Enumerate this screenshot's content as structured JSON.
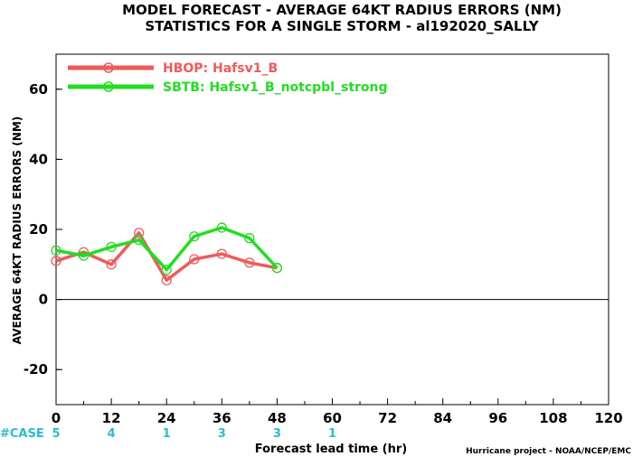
{
  "chart_data": {
    "type": "line",
    "title": "MODEL FORECAST - AVERAGE 64KT RADIUS ERRORS (NM)",
    "subtitle": "STATISTICS FOR A SINGLE STORM - al192020_SALLY",
    "xlabel": "Forecast lead time (hr)",
    "ylabel": "AVERAGE 64KT RADIUS ERRORS (NM)",
    "xlim": [
      0,
      120
    ],
    "ylim": [
      -30,
      70
    ],
    "xticks": [
      0,
      12,
      24,
      36,
      48,
      60,
      72,
      84,
      96,
      108,
      120
    ],
    "yticks": [
      -20,
      0,
      20,
      40,
      60
    ],
    "x": [
      0,
      6,
      12,
      18,
      24,
      30,
      36,
      42,
      48
    ],
    "series": [
      {
        "name": "HBOP: Hafsv1_B",
        "color": "#f05a5a",
        "values": [
          11,
          13.5,
          10,
          19,
          5.5,
          11.5,
          13,
          10.5,
          9
        ]
      },
      {
        "name": "SBTB: Hafsv1_B_notcpbl_strong",
        "color": "#22dd22",
        "values": [
          14,
          12.5,
          15,
          17,
          8.5,
          18,
          20.5,
          17.5,
          9
        ]
      }
    ],
    "cases": {
      "label": "#CASE",
      "hours": [
        0,
        12,
        24,
        36,
        48,
        60
      ],
      "counts": [
        "5",
        "4",
        "1",
        "3",
        "3",
        "1"
      ]
    },
    "legend_position": "top-left",
    "grid": false
  },
  "credit": "Hurricane project - NOAA/NCEP/EMC"
}
